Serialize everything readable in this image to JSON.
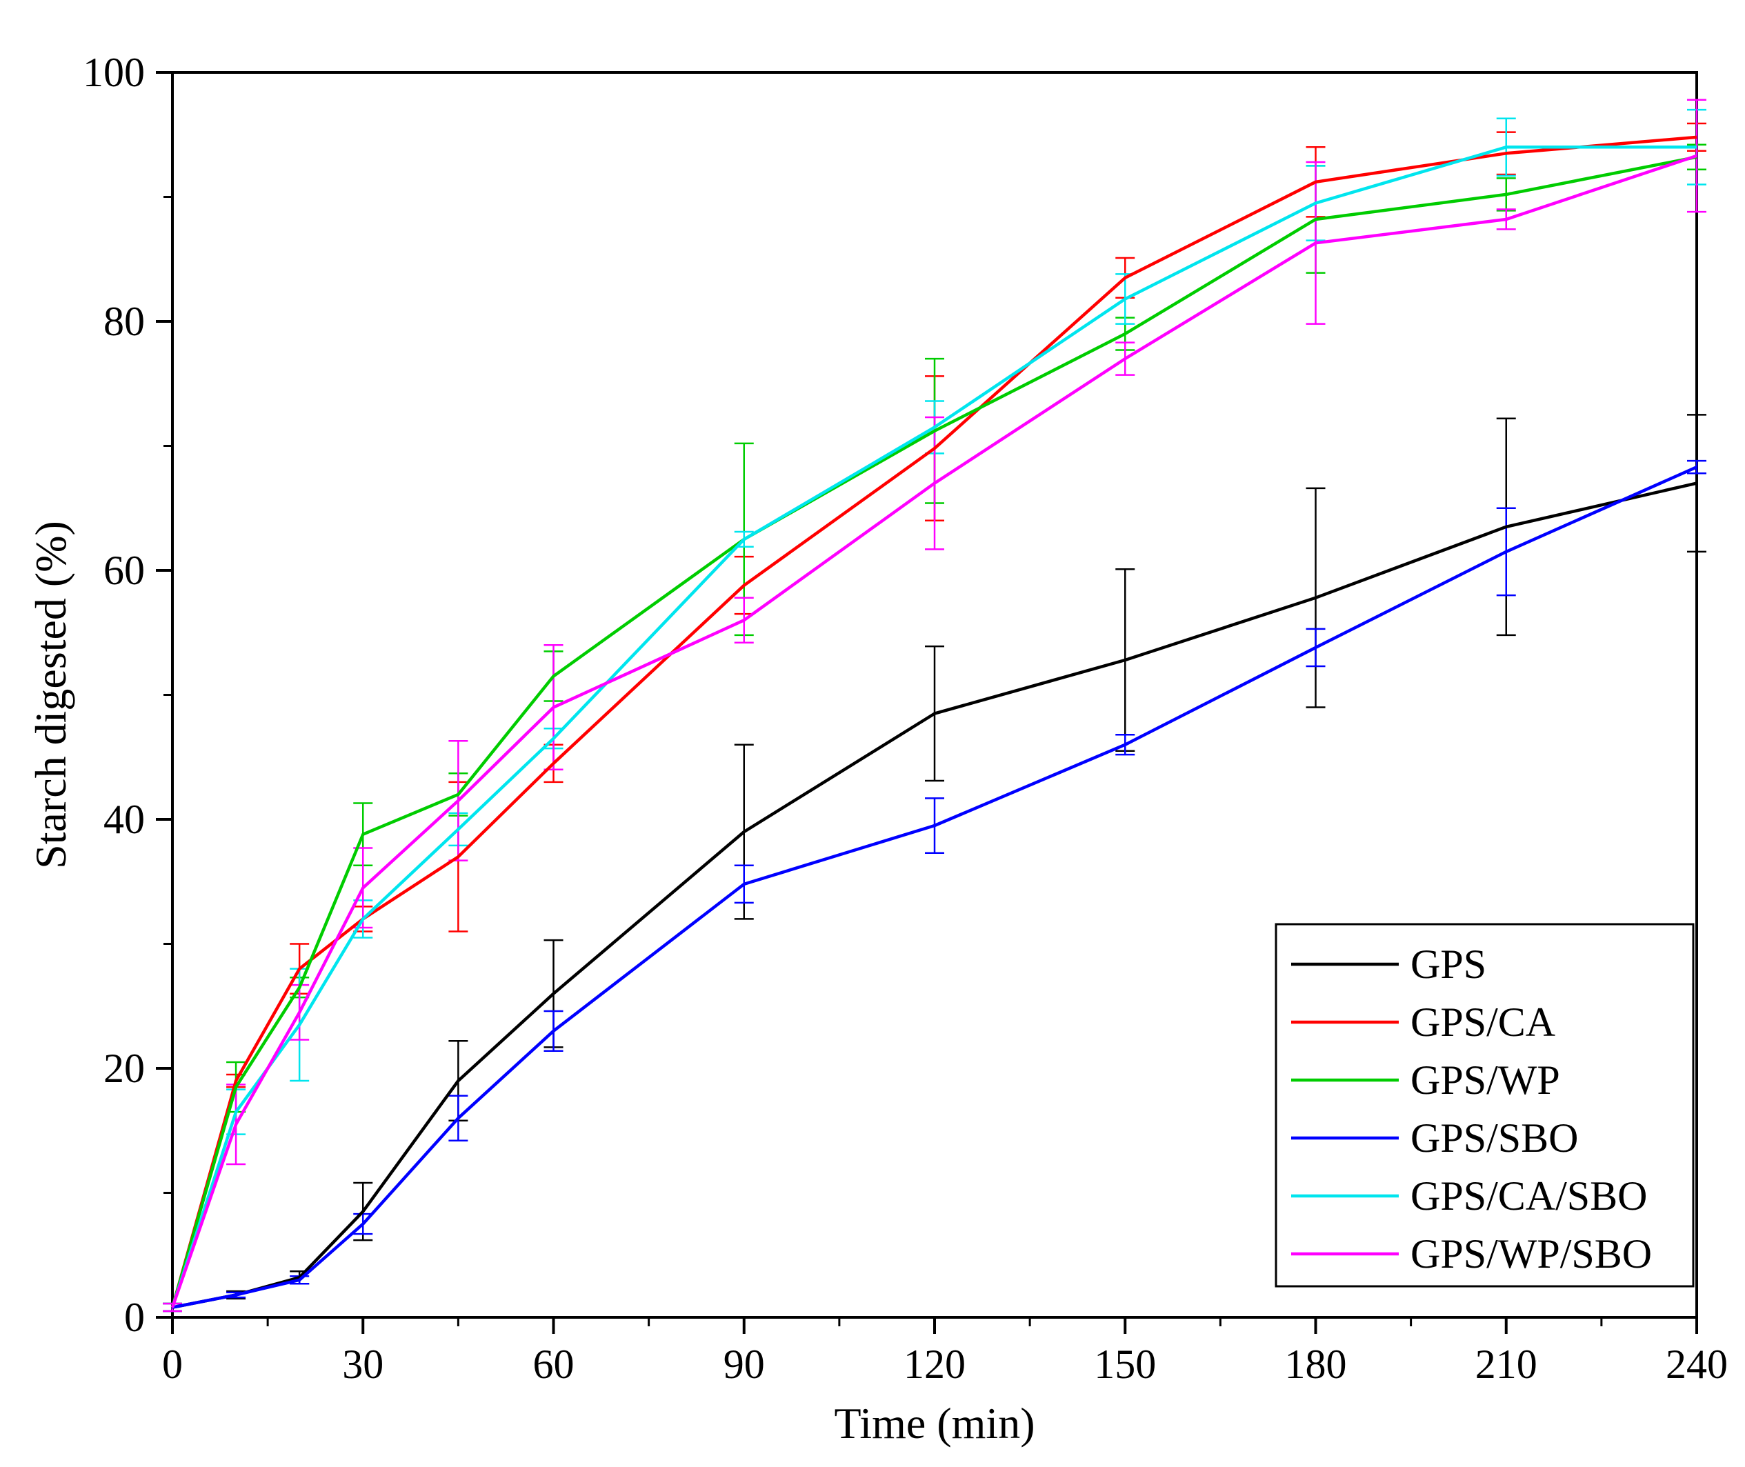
{
  "chart_data": {
    "type": "line",
    "title": "",
    "xlabel": "Time (min)",
    "ylabel": "Starch digested (%)",
    "xlim": [
      0,
      240
    ],
    "ylim": [
      0,
      100
    ],
    "xticks": [
      0,
      30,
      60,
      90,
      120,
      150,
      180,
      210,
      240
    ],
    "yticks": [
      0,
      20,
      40,
      60,
      80,
      100
    ],
    "grid": false,
    "legend_position": "bottom-right",
    "x": [
      0,
      10,
      20,
      30,
      45,
      60,
      90,
      120,
      150,
      180,
      210,
      240
    ],
    "series": [
      {
        "name": "GPS",
        "color": "#000000",
        "values": [
          0.8,
          1.8,
          3.2,
          8.5,
          19.0,
          26.0,
          39.0,
          48.5,
          52.8,
          57.8,
          63.5,
          67.0
        ],
        "errors": [
          0.3,
          0.3,
          0.5,
          2.3,
          3.2,
          4.3,
          7.0,
          5.4,
          7.3,
          8.8,
          8.7,
          5.5
        ]
      },
      {
        "name": "GPS/CA",
        "color": "#ff0000",
        "values": [
          0.8,
          19.0,
          28.0,
          32.0,
          37.0,
          44.5,
          58.8,
          69.8,
          83.5,
          91.2,
          93.5,
          94.8
        ],
        "errors": [
          0.3,
          0.5,
          2.0,
          1.0,
          6.0,
          1.5,
          2.3,
          5.8,
          1.6,
          2.8,
          1.7,
          1.1
        ]
      },
      {
        "name": "GPS/WP",
        "color": "#00cc00",
        "values": [
          0.8,
          18.5,
          26.5,
          38.8,
          42.0,
          51.5,
          62.5,
          71.2,
          79.0,
          88.2,
          90.2,
          93.2
        ],
        "errors": [
          0.3,
          2.0,
          0.8,
          2.5,
          1.7,
          2.0,
          7.7,
          5.8,
          1.3,
          4.3,
          1.3,
          1.0
        ]
      },
      {
        "name": "GPS/SBO",
        "color": "#0000ff",
        "values": [
          0.8,
          1.8,
          3.0,
          7.5,
          16.0,
          23.0,
          34.8,
          39.5,
          46.0,
          53.8,
          61.5,
          68.3
        ],
        "errors": [
          0.3,
          0.2,
          0.3,
          0.8,
          1.8,
          1.6,
          1.5,
          2.2,
          0.8,
          1.5,
          3.5,
          0.5
        ]
      },
      {
        "name": "GPS/CA/SBO",
        "color": "#00e5ee",
        "values": [
          0.8,
          16.5,
          23.5,
          32.0,
          39.2,
          46.5,
          62.5,
          71.5,
          81.8,
          89.5,
          94.0,
          94.0
        ],
        "errors": [
          0.3,
          1.8,
          4.5,
          1.5,
          1.3,
          0.8,
          0.6,
          2.1,
          2.0,
          3.0,
          2.3,
          3.0
        ]
      },
      {
        "name": "GPS/WP/SBO",
        "color": "#ff00ff",
        "values": [
          0.8,
          15.5,
          24.5,
          34.5,
          41.5,
          49.0,
          56.0,
          67.0,
          77.0,
          86.3,
          88.2,
          93.3
        ],
        "errors": [
          0.3,
          3.2,
          2.2,
          3.2,
          4.8,
          5.0,
          1.8,
          5.3,
          1.3,
          6.5,
          0.8,
          4.5
        ]
      }
    ]
  }
}
